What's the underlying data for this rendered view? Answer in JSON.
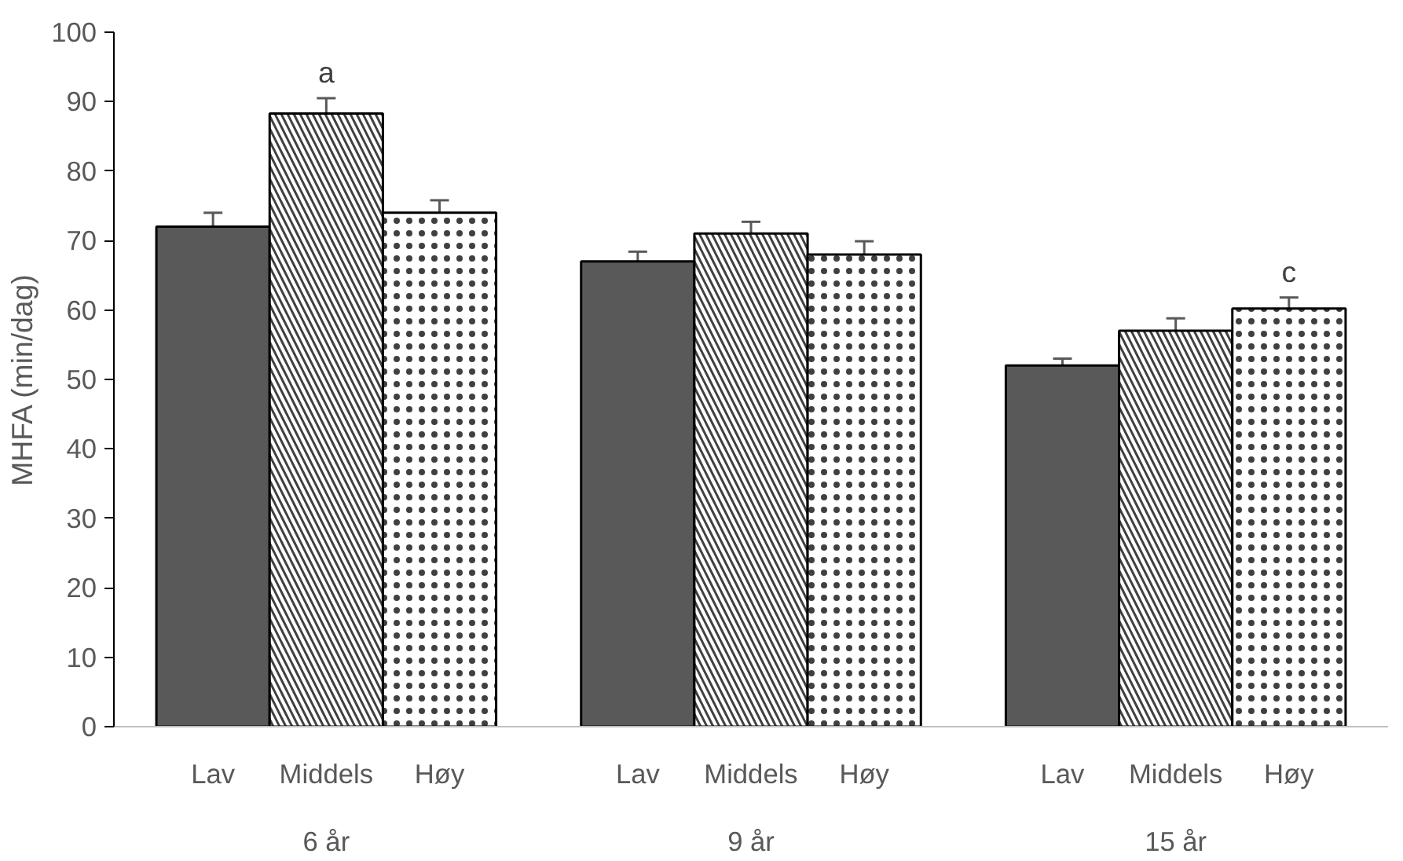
{
  "chart_data": {
    "type": "bar",
    "ylabel": "MHFA (min/dag)",
    "categories": [
      "6 år",
      "9 år",
      "15 år"
    ],
    "series": [
      {
        "name": "Lav",
        "color": "#595959",
        "values": [
          72,
          67,
          52
        ],
        "errors": [
          2,
          1.4,
          1
        ]
      },
      {
        "name": "Middels",
        "color": "#ffffff",
        "values": [
          88.3,
          71,
          57
        ],
        "errors": [
          2.2,
          1.7,
          1.8
        ],
        "value_labels": [
          "a",
          null,
          null
        ]
      },
      {
        "name": "Høy",
        "color": "#ffffff",
        "values": [
          74,
          68,
          60.2
        ],
        "errors": [
          1.8,
          1.9,
          1.6
        ],
        "value_labels": [
          null,
          null,
          "c"
        ]
      }
    ],
    "ylim": [
      0,
      100
    ],
    "yticks": [
      0,
      10,
      20,
      30,
      40,
      50,
      60,
      70,
      80,
      90,
      100
    ],
    "grid": false
  }
}
